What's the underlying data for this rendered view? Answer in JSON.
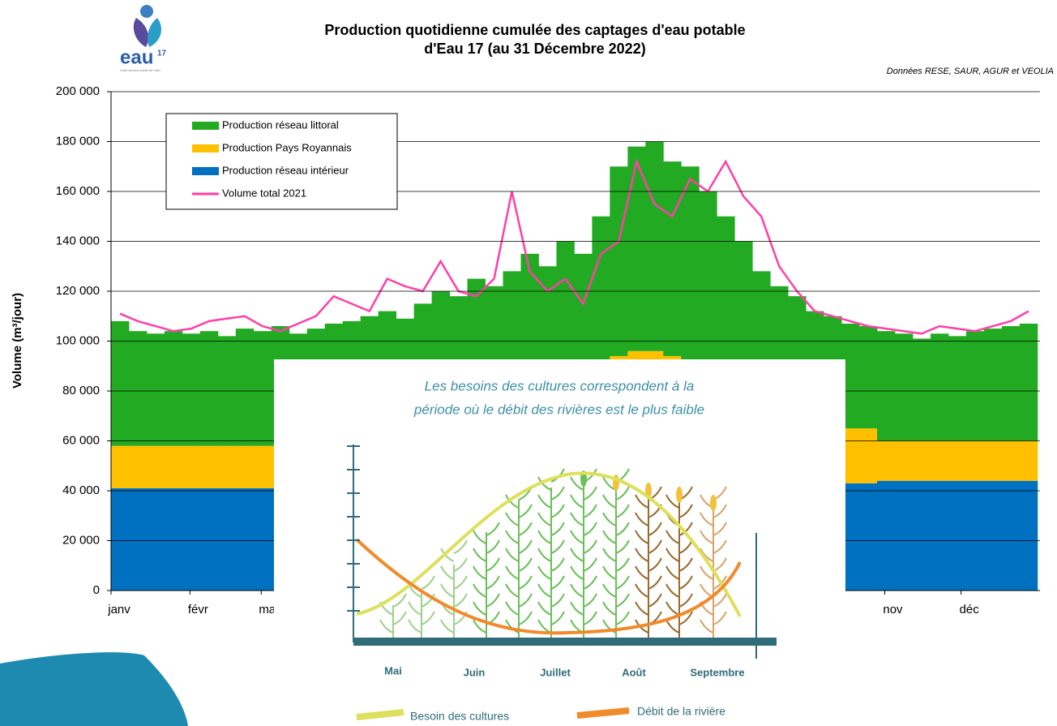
{
  "chart_data": {
    "type": "bar",
    "title": [
      "Production quotidienne cumulée des captages d'eau potable",
      "d'Eau 17 (au 31 Décembre 2022)"
    ],
    "source": "Données RESE, SAUR, AGUR et VEOLIA",
    "y_label": "Volume (m³/jour)",
    "stacked": true,
    "grid": true,
    "legend": "top-left",
    "xlim": [
      0,
      365
    ],
    "xticks": [
      {
        "value": 0,
        "label": "janv"
      },
      {
        "value": 31,
        "label": "févr"
      },
      {
        "value": 59,
        "label": "mar"
      },
      {
        "value": 304,
        "label": "nov"
      },
      {
        "value": 334,
        "label": "déc"
      }
    ],
    "ylim": [
      0,
      200000
    ],
    "yticks": [
      0,
      {
        "value": 20000,
        "label": "20 000"
      },
      {
        "value": 40000,
        "label": "40 000"
      },
      {
        "value": 60000,
        "label": "60 000"
      },
      {
        "value": 80000,
        "label": "80 000"
      },
      {
        "value": 100000,
        "label": "100 000"
      },
      {
        "value": 120000,
        "label": "120 000"
      },
      {
        "value": 140000,
        "label": "140 000"
      },
      {
        "value": 160000,
        "label": "160 000"
      },
      {
        "value": 180000,
        "label": "180 000"
      },
      {
        "value": 200000,
        "label": "200 000"
      }
    ],
    "x": [
      3.5,
      10.5,
      17.5,
      24.5,
      31.5,
      38.5,
      45.5,
      52.5,
      59.5,
      66.5,
      73.5,
      80.5,
      87.5,
      94.5,
      101.5,
      108.5,
      115.5,
      122.5,
      129.5,
      136.5,
      143.5,
      150.5,
      157.5,
      164.5,
      171.5,
      178.5,
      185.5,
      192.5,
      199.5,
      206.5,
      213.5,
      220.5,
      227.5,
      234.5,
      241.5,
      248.5,
      255.5,
      262.5,
      269.5,
      276.5,
      283.5,
      290.5,
      297.5,
      304.5,
      311.5,
      318.5,
      325.5,
      332.5,
      339.5,
      346.5,
      353.5,
      360.5
    ],
    "series": [
      {
        "name": "Production réseau littoral",
        "color": "#22aa22",
        "type": "bar",
        "values": [
          50000,
          46000,
          45000,
          46000,
          45000,
          46000,
          44000,
          47000,
          46000,
          48000,
          45000,
          47000,
          49000,
          45000,
          47000,
          49000,
          46000,
          47000,
          52000,
          50000,
          57000,
          54000,
          53000,
          60000,
          55000,
          65000,
          47000,
          60000,
          76000,
          82000,
          84000,
          78000,
          78000,
          72000,
          66000,
          65000,
          53000,
          47000,
          43000,
          47000,
          45000,
          42000,
          41000,
          44000,
          43000,
          41000,
          43000,
          42000,
          44000,
          45000,
          46000,
          47000
        ]
      },
      {
        "name": "Production Pays Royannais",
        "color": "#ffc000",
        "type": "bar",
        "values": [
          17000,
          17000,
          17000,
          17000,
          17000,
          17000,
          17000,
          17000,
          17000,
          17000,
          17000,
          17000,
          17000,
          20000,
          20000,
          20000,
          20000,
          25000,
          25000,
          25000,
          25000,
          25000,
          32000,
          32000,
          32000,
          32000,
          40000,
          42000,
          46000,
          48000,
          48000,
          46000,
          44000,
          40000,
          36000,
          30000,
          30000,
          30000,
          30000,
          22000,
          22000,
          22000,
          22000,
          16000,
          16000,
          16000,
          16000,
          16000,
          16000,
          16000,
          16000,
          16000
        ]
      },
      {
        "name": "Production réseau intérieur",
        "color": "#0070c0",
        "type": "bar",
        "values": [
          41000,
          41000,
          41000,
          41000,
          41000,
          41000,
          41000,
          41000,
          41000,
          41000,
          41000,
          41000,
          41000,
          43000,
          43000,
          43000,
          43000,
          43000,
          43000,
          43000,
          43000,
          43000,
          43000,
          43000,
          43000,
          43000,
          48000,
          48000,
          48000,
          48000,
          48000,
          48000,
          48000,
          48000,
          48000,
          45000,
          45000,
          45000,
          45000,
          43000,
          43000,
          43000,
          43000,
          44000,
          44000,
          44000,
          44000,
          44000,
          44000,
          44000,
          44000,
          44000
        ]
      },
      {
        "name": "Volume total 2021",
        "color": "#ff3fa8",
        "type": "line",
        "values": [
          111000,
          108000,
          106000,
          104000,
          105000,
          108000,
          109000,
          110000,
          106000,
          104000,
          107000,
          110000,
          118000,
          115000,
          112000,
          125000,
          122000,
          120000,
          132000,
          120000,
          118000,
          125000,
          160000,
          128000,
          120000,
          125000,
          115000,
          135000,
          140000,
          172000,
          155000,
          150000,
          165000,
          160000,
          172000,
          158000,
          150000,
          130000,
          120000,
          112000,
          110000,
          108000,
          106000,
          105000,
          104000,
          103000,
          106000,
          105000,
          104000,
          106000,
          108000,
          112000
        ]
      }
    ]
  },
  "logo": {
    "text": "eau",
    "number": "17",
    "tagline": "Votre service public de l'eau"
  },
  "inset": {
    "title": [
      "Les besoins des cultures correspondent à la",
      "période où le débit des rivières est le plus faible"
    ],
    "months": [
      "Mai",
      "Juin",
      "Juillet",
      "Août",
      "Septembre"
    ],
    "legend": [
      "Besoin des cultures",
      "Débit de la rivière"
    ]
  }
}
